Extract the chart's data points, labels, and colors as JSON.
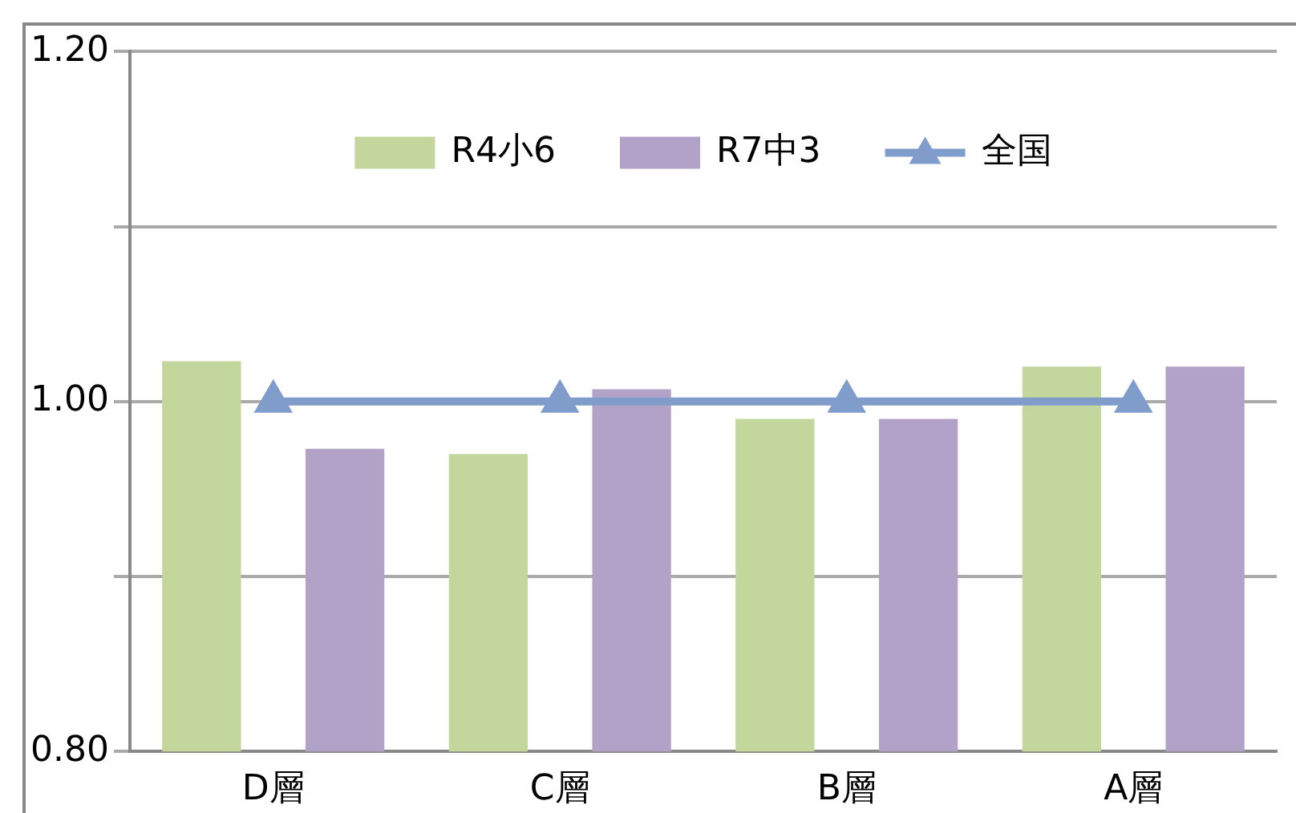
{
  "chart_data": {
    "type": "bar",
    "categories": [
      "D層",
      "C層",
      "B層",
      "A層"
    ],
    "series": [
      {
        "name": "R4小6",
        "color": "#c3d69b",
        "values": [
          1.023,
          0.97,
          0.99,
          1.02
        ]
      },
      {
        "name": "R7中3",
        "color": "#b2a2c7",
        "values": [
          0.973,
          1.007,
          0.99,
          1.02
        ]
      },
      {
        "name": "全国",
        "type": "line",
        "color": "#7f9ccb",
        "values": [
          1.0,
          1.0,
          1.0,
          1.0
        ],
        "marker": "triangle"
      }
    ],
    "ylim": [
      0.8,
      1.2
    ],
    "yticks": [
      {
        "value": 0.8,
        "label": "0.80"
      },
      {
        "value": 0.9,
        "label": null
      },
      {
        "value": 1.0,
        "label": "1.00"
      },
      {
        "value": 1.1,
        "label": null
      },
      {
        "value": 1.2,
        "label": "1.20"
      }
    ],
    "grid": "y",
    "legend": "top"
  }
}
